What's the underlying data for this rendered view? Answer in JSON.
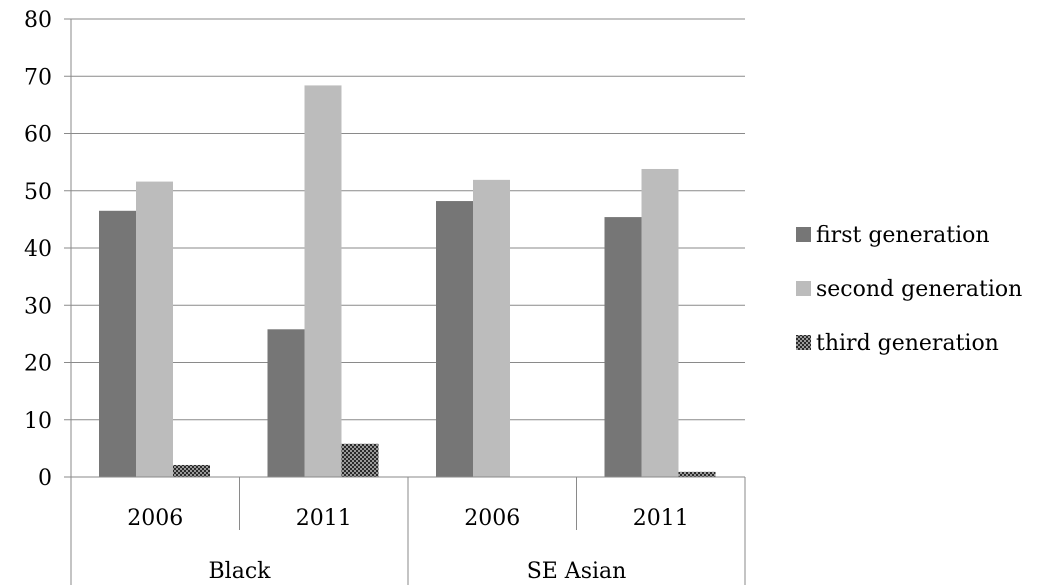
{
  "chart_data": {
    "type": "bar",
    "title": "",
    "xlabel": "",
    "ylabel": "",
    "ylim": [
      0,
      80
    ],
    "yticks": [
      0,
      10,
      20,
      30,
      40,
      50,
      60,
      70,
      80
    ],
    "grid": true,
    "legend_position": "right",
    "groups": [
      {
        "name": "Black",
        "categories": [
          "2006",
          "2011"
        ]
      },
      {
        "name": "SE Asian",
        "categories": [
          "2006",
          "2011"
        ]
      }
    ],
    "series": [
      {
        "name": "first generation",
        "color": "#767676",
        "pattern": "solid",
        "values": [
          46.5,
          25.8,
          48.2,
          45.4
        ]
      },
      {
        "name": "second generation",
        "color": "#bcbcbc",
        "pattern": "solid",
        "values": [
          51.6,
          68.4,
          51.9,
          53.8
        ]
      },
      {
        "name": "third generation",
        "color": "#333333",
        "pattern": "checker",
        "values": [
          2.1,
          5.8,
          0,
          0.9
        ]
      }
    ]
  }
}
